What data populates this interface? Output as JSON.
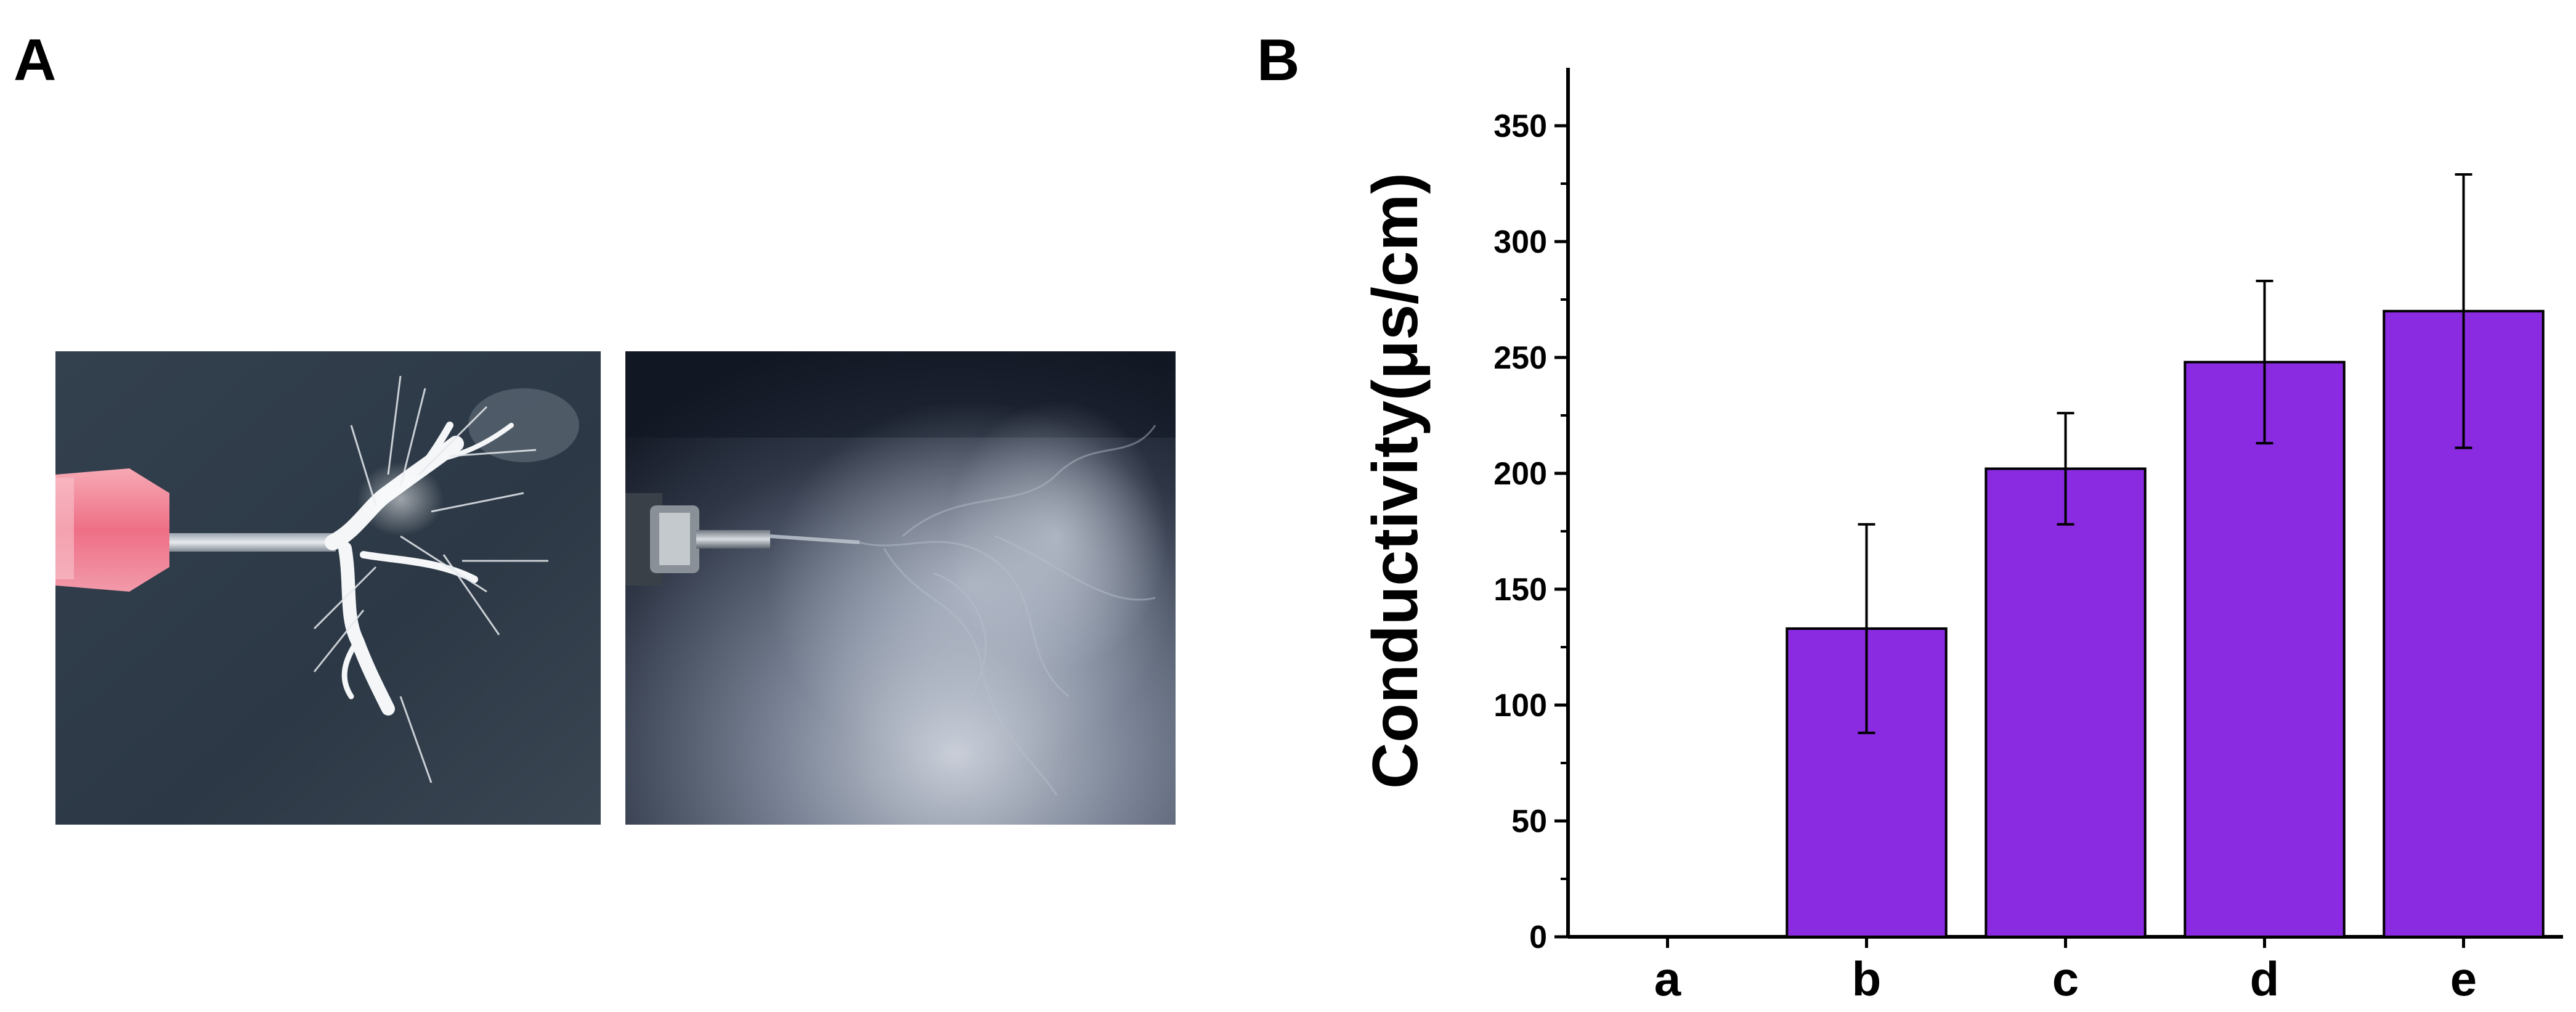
{
  "panels": {
    "a_label": "A",
    "b_label": "B"
  },
  "photos": [
    {
      "name": "syringe-needle-with-branching-white-jet"
    },
    {
      "name": "metal-needle-with-diffuse-fiber-spray"
    }
  ],
  "chart_data": {
    "type": "bar",
    "categories": [
      "a",
      "b",
      "c",
      "d",
      "e"
    ],
    "values": [
      0,
      133,
      202,
      248,
      270
    ],
    "errors": [
      0,
      45,
      24,
      35,
      59
    ],
    "title": "",
    "xlabel": "",
    "ylabel": "Conductivity(μs/cm)",
    "ylim": [
      0,
      375
    ],
    "yticks": [
      0,
      50,
      100,
      150,
      200,
      250,
      300,
      350
    ],
    "bar_color": "#8a2be2",
    "grid": false,
    "legend": "none"
  }
}
